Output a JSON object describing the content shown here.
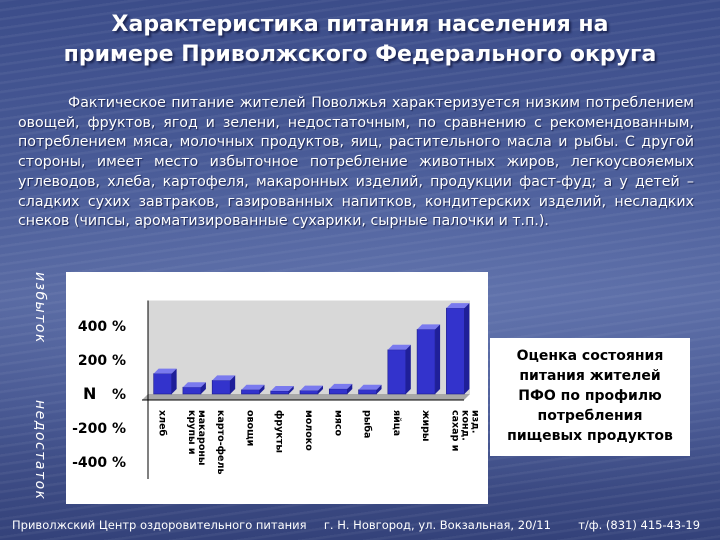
{
  "title": {
    "line1": "Характеристика питания населения на",
    "line2": "примере Приволжского Федерального округа"
  },
  "body_text": "Фактическое питание жителей Поволжья характеризуется низким потреблением овощей, фруктов, ягод и зелени, недостаточным, по сравнению с рекомендованным, потреблением мяса, молочных продуктов, яиц, растительного масла и рыбы. С другой стороны, имеет место избыточное потребление животных жиров, легкоусвояемых углеводов, хлеба, картофеля, макаронных изделий, продукции фаст-фуд; а у детей – сладких сухих завтраков, газированных напитков, кондитерских изделий, несладких снеков (чипсы, ароматизированные сухарики, сырные палочки и т.п.).",
  "side_labels": {
    "excess": "избыток",
    "deficit": "недостаток"
  },
  "chart_data": {
    "type": "bar",
    "y_ticks": [
      "400 %",
      "200 %",
      "%",
      "-200 %",
      "-400 %"
    ],
    "zero_label": "N",
    "categories": [
      "хлеб",
      "крупы и макароны",
      "карто-фель",
      "овощи",
      "фрукты",
      "молоко",
      "мясо",
      "рыба",
      "яйца",
      "жиры",
      "сахар и конд. изд."
    ],
    "values": [
      120,
      40,
      80,
      25,
      18,
      20,
      30,
      25,
      260,
      380,
      505
    ],
    "ylim": [
      -500,
      550
    ],
    "bar_color": "#3333cc",
    "grid": false
  },
  "note": {
    "lines": [
      "Оценка состояния",
      "питания жителей",
      "ПФО по профилю",
      "потребления",
      "пищевых продуктов"
    ]
  },
  "footer": {
    "org": "Приволжский Центр оздоровительного питания",
    "address": "г. Н. Новгород, ул. Вокзальная, 20/11",
    "phone": "т/ф. (831) 415-43-19"
  }
}
